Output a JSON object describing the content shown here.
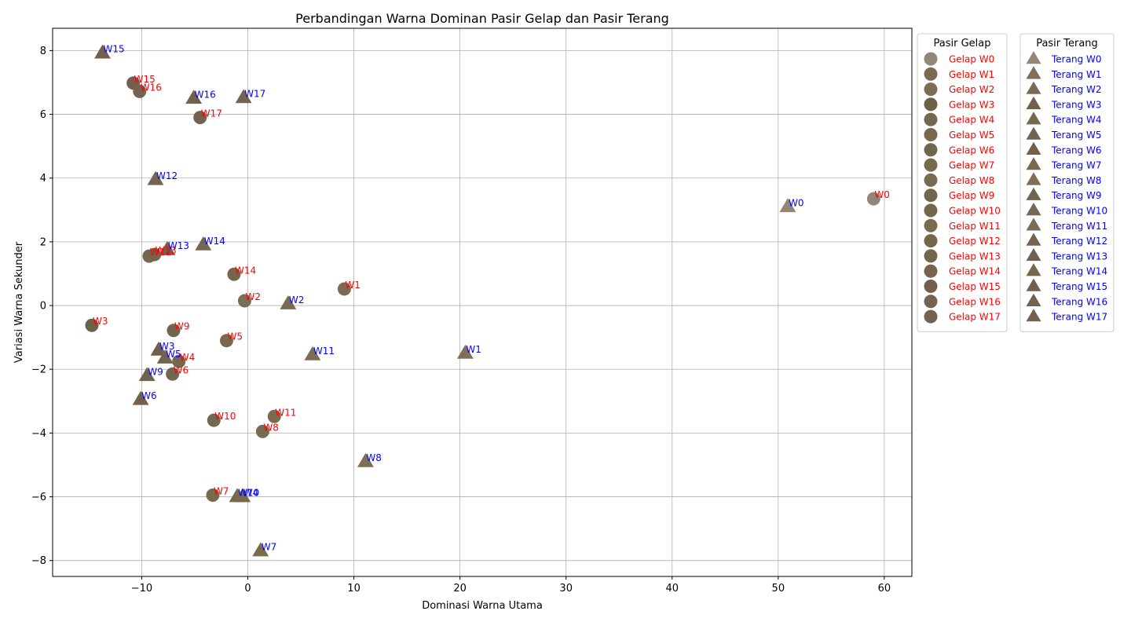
{
  "chart_data": {
    "type": "scatter",
    "title": "Perbandingan Warna Dominan Pasir Gelap dan Pasir Terang",
    "xlabel": "Dominasi Warna Utama",
    "ylabel": "Variasi Warna Sekunder",
    "xlim": [
      -18.4,
      62.6
    ],
    "ylim": [
      -8.5,
      8.7
    ],
    "xticks": [
      -10,
      0,
      10,
      20,
      30,
      40,
      50,
      60
    ],
    "yticks": [
      -8,
      -6,
      -4,
      -2,
      0,
      2,
      4,
      6,
      8
    ],
    "grid": true,
    "legend_placement": "outside-right",
    "series": [
      {
        "name": "Pasir Gelap",
        "marker": "circle",
        "label_color": "#ff0000",
        "points": [
          {
            "label": "W0",
            "legend": "Gelap W0",
            "x": 59.0,
            "y": 3.35,
            "color": "#918777"
          },
          {
            "label": "W1",
            "legend": "Gelap W1",
            "x": 9.1,
            "y": 0.52,
            "color": "#7c6a52"
          },
          {
            "label": "W2",
            "legend": "Gelap W2",
            "x": -0.3,
            "y": 0.15,
            "color": "#7b6d57"
          },
          {
            "label": "W3",
            "legend": "Gelap W3",
            "x": -14.7,
            "y": -0.62,
            "color": "#6c6047"
          },
          {
            "label": "W4",
            "legend": "Gelap W4",
            "x": -6.5,
            "y": -1.75,
            "color": "#74664f"
          },
          {
            "label": "W5",
            "legend": "Gelap W5",
            "x": -2.0,
            "y": -1.1,
            "color": "#77684f"
          },
          {
            "label": "W6",
            "legend": "Gelap W6",
            "x": -7.1,
            "y": -2.15,
            "color": "#716750"
          },
          {
            "label": "W7",
            "legend": "Gelap W7",
            "x": -3.3,
            "y": -5.95,
            "color": "#766c4c"
          },
          {
            "label": "W8",
            "legend": "Gelap W8",
            "x": 1.4,
            "y": -3.95,
            "color": "#7a6a4f"
          },
          {
            "label": "W9",
            "legend": "Gelap W9",
            "x": -7.0,
            "y": -0.78,
            "color": "#70664f"
          },
          {
            "label": "W10",
            "legend": "Gelap W10",
            "x": -3.2,
            "y": -3.6,
            "color": "#73684e"
          },
          {
            "label": "W11",
            "legend": "Gelap W11",
            "x": 2.5,
            "y": -3.48,
            "color": "#7a6b50"
          },
          {
            "label": "W12",
            "legend": "Gelap W12",
            "x": -9.3,
            "y": 1.55,
            "color": "#76654f"
          },
          {
            "label": "W13",
            "legend": "Gelap W13",
            "x": -8.8,
            "y": 1.6,
            "color": "#74634f"
          },
          {
            "label": "W14",
            "legend": "Gelap W14",
            "x": -1.3,
            "y": 0.98,
            "color": "#76644c"
          },
          {
            "label": "W15",
            "legend": "Gelap W15",
            "x": -10.8,
            "y": 6.98,
            "color": "#745f4f"
          },
          {
            "label": "W16",
            "legend": "Gelap W16",
            "x": -10.2,
            "y": 6.72,
            "color": "#75624f"
          },
          {
            "label": "W17",
            "legend": "Gelap W17",
            "x": -4.5,
            "y": 5.9,
            "color": "#73624f"
          }
        ]
      },
      {
        "name": "Pasir Terang",
        "marker": "triangle",
        "label_color": "#0000ff",
        "points": [
          {
            "label": "W0",
            "legend": "Terang W0",
            "x": 50.9,
            "y": 3.1,
            "color": "#938672"
          },
          {
            "label": "W1",
            "legend": "Terang W1",
            "x": 20.5,
            "y": -1.5,
            "color": "#80705a"
          },
          {
            "label": "W2",
            "legend": "Terang W2",
            "x": 3.8,
            "y": 0.05,
            "color": "#7b6a52"
          },
          {
            "label": "W3",
            "legend": "Terang W3",
            "x": -8.4,
            "y": -1.4,
            "color": "#6e604a"
          },
          {
            "label": "W4",
            "legend": "Terang W4",
            "x": -0.5,
            "y": -6.0,
            "color": "#77694e"
          },
          {
            "label": "W5",
            "legend": "Terang W5",
            "x": -7.8,
            "y": -1.65,
            "color": "#726450"
          },
          {
            "label": "W6",
            "legend": "Terang W6",
            "x": -10.1,
            "y": -2.95,
            "color": "#735f4a"
          },
          {
            "label": "W7",
            "legend": "Terang W7",
            "x": 1.2,
            "y": -7.7,
            "color": "#7a6b4d"
          },
          {
            "label": "W8",
            "legend": "Terang W8",
            "x": 11.1,
            "y": -4.9,
            "color": "#7f6e53"
          },
          {
            "label": "W9",
            "legend": "Terang W9",
            "x": -9.5,
            "y": -2.2,
            "color": "#6f6450"
          },
          {
            "label": "W10",
            "legend": "Terang W10",
            "x": -1.0,
            "y": -6.0,
            "color": "#736a4f"
          },
          {
            "label": "W11",
            "legend": "Terang W11",
            "x": 6.1,
            "y": -1.55,
            "color": "#7b6d55"
          },
          {
            "label": "W12",
            "legend": "Terang W12",
            "x": -8.7,
            "y": 3.95,
            "color": "#76654e"
          },
          {
            "label": "W13",
            "legend": "Terang W13",
            "x": -7.6,
            "y": 1.75,
            "color": "#706250"
          },
          {
            "label": "W14",
            "legend": "Terang W14",
            "x": -4.2,
            "y": 1.9,
            "color": "#77664e"
          },
          {
            "label": "W15",
            "legend": "Terang W15",
            "x": -13.7,
            "y": 7.92,
            "color": "#735f4f"
          },
          {
            "label": "W16",
            "legend": "Terang W16",
            "x": -5.1,
            "y": 6.5,
            "color": "#74614d"
          },
          {
            "label": "W17",
            "legend": "Terang W17",
            "x": -0.4,
            "y": 6.52,
            "color": "#75624e"
          }
        ]
      }
    ]
  }
}
